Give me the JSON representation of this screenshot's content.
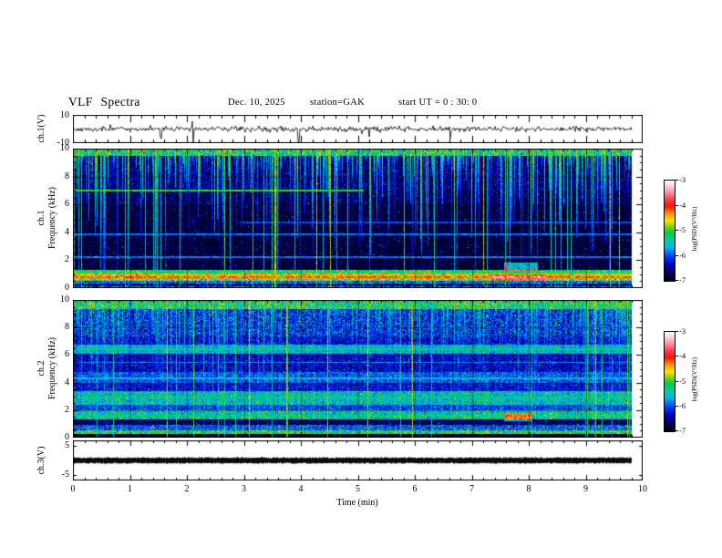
{
  "header": {
    "title": "VLF Spectra",
    "date": "Dec. 10, 2025",
    "station": "station=GAK",
    "start_ut": "start UT =  0 : 30: 0"
  },
  "x_axis": {
    "label": "Time  (min)",
    "ticks": [
      "0",
      "1",
      "2",
      "3",
      "4",
      "5",
      "6",
      "7",
      "8",
      "9",
      "10"
    ],
    "range_min": [
      0,
      10
    ],
    "data_end_min": 9.8
  },
  "panels": {
    "ch1_wave": {
      "label": "ch.1(V)",
      "y_ticks": [
        "10",
        "-10"
      ],
      "y_range_V": [
        -10,
        10
      ]
    },
    "ch1_spec": {
      "label_line1": "ch.1",
      "label_line2": "Frequency  (kHz)",
      "y_ticks": [
        "10",
        "8",
        "6",
        "4",
        "2",
        "0"
      ],
      "y_range_kHz": [
        0,
        10
      ]
    },
    "ch2_spec": {
      "label_line1": "ch.2",
      "label_line2": "Frequency  (kHz)",
      "y_ticks": [
        "10",
        "8",
        "6",
        "4",
        "2",
        "0"
      ],
      "y_range_kHz": [
        0,
        10
      ]
    },
    "ch3_wave": {
      "label": "ch.3(V)",
      "y_ticks": [
        "5",
        "-5"
      ],
      "y_range_V": [
        -7,
        7
      ]
    }
  },
  "colorbar": {
    "label": "log(PSD)(V²/Hz)",
    "ticks": [
      "-3",
      "-4",
      "-5",
      "-6",
      "-7"
    ],
    "z_range": [
      -7,
      -3
    ],
    "gradient_stops": [
      [
        0,
        "#ffffff"
      ],
      [
        5,
        "#ffd2de"
      ],
      [
        12,
        "#ff8fa6"
      ],
      [
        20,
        "#ff3344"
      ],
      [
        26,
        "#ff1500"
      ],
      [
        33,
        "#ff9500"
      ],
      [
        40,
        "#ffe400"
      ],
      [
        46,
        "#7fd600"
      ],
      [
        52,
        "#00cc44"
      ],
      [
        60,
        "#00ccaa"
      ],
      [
        67,
        "#00b4e6"
      ],
      [
        75,
        "#0044ff"
      ],
      [
        84,
        "#0000bb"
      ],
      [
        92,
        "#000060"
      ],
      [
        100,
        "#000000"
      ]
    ]
  },
  "chart_data": [
    {
      "type": "line",
      "name": "ch1-voltage-waveform",
      "x_range_min": [
        0,
        10
      ],
      "data_end_min": 9.8,
      "y_range_V": [
        -10,
        10
      ],
      "signal": {
        "mean_V": 0,
        "noise_sigma_V": 1.0,
        "neg_spike_rate": 0.012,
        "neg_spike_V": [
          -4,
          -11
        ],
        "pos_spike_rate": 0.005,
        "pos_spike_V": [
          2.5,
          5.5
        ],
        "seed": 42
      }
    },
    {
      "type": "heatmap",
      "name": "ch1-spectrogram",
      "x_range_min": [
        0,
        9.8
      ],
      "y_range_kHz": [
        0,
        10
      ],
      "z_range_logPSD": [
        -7,
        -3
      ],
      "bands": [
        {
          "f_lo": 9.5,
          "f_hi": 10.01,
          "base": 0.42,
          "var": 0.22
        },
        {
          "f_lo": 7.0,
          "f_hi": 9.5,
          "base": 0.1,
          "var": 0.16
        },
        {
          "f_lo": 6.0,
          "f_hi": 7.0,
          "base": 0.08,
          "var": 0.12
        },
        {
          "f_lo": 1.35,
          "f_hi": 6.0,
          "base": 0.05,
          "var": 0.09
        },
        {
          "f_lo": 1.05,
          "f_hi": 1.35,
          "base": 0.45,
          "var": 0.15
        },
        {
          "f_lo": 0.9,
          "f_hi": 1.05,
          "base": 0.6,
          "var": 0.12
        },
        {
          "f_lo": 0.78,
          "f_hi": 0.9,
          "base": 0.72,
          "var": 0.08
        },
        {
          "f_lo": 0.55,
          "f_hi": 0.78,
          "base": 0.55,
          "var": 0.15
        },
        {
          "f_lo": 0.38,
          "f_hi": 0.55,
          "base": 0.28,
          "var": 0.2
        },
        {
          "f_lo": 0.18,
          "f_hi": 0.38,
          "base": 0.1,
          "var": 0.25
        },
        {
          "f_lo": 0.0,
          "f_hi": 0.18,
          "base": 0.35,
          "var": 0.35
        }
      ],
      "streaks": {
        "prob": 0.6,
        "full_prob": 0.1,
        "int_lo": 0.3,
        "int_hi": 0.75,
        "thin_prob": 0.05
      },
      "hlines": [
        {
          "f": 7.05,
          "amp": 0.5,
          "x0": 0.0,
          "x1": 0.52
        },
        {
          "f": 3.9,
          "amp": 0.28,
          "x0": 0.0,
          "x1": 1.0
        },
        {
          "f": 2.25,
          "amp": 0.28,
          "x0": 0.0,
          "x1": 1.0
        },
        {
          "f": 4.75,
          "amp": 0.24,
          "x0": 0.3,
          "x1": 1.0
        }
      ],
      "blobs": [
        {
          "x0": 7.55,
          "x1": 8.15,
          "f0": 1.25,
          "f1": 1.85,
          "amp": 0.38
        },
        {
          "x0": 7.3,
          "x1": 8.3,
          "f0": 0.55,
          "f1": 1.0,
          "amp": 0.2
        }
      ],
      "seed": 12345
    },
    {
      "type": "heatmap",
      "name": "ch2-spectrogram",
      "x_range_min": [
        0,
        9.8
      ],
      "y_range_kHz": [
        0,
        10
      ],
      "z_range_logPSD": [
        -7,
        -3
      ],
      "bands": [
        {
          "f_lo": 9.4,
          "f_hi": 10.01,
          "base": 0.45,
          "var": 0.2
        },
        {
          "f_lo": 7.4,
          "f_hi": 9.4,
          "base": 0.22,
          "var": 0.22
        },
        {
          "f_lo": 6.8,
          "f_hi": 7.4,
          "base": 0.18,
          "var": 0.15
        },
        {
          "f_lo": 6.1,
          "f_hi": 6.8,
          "base": 0.35,
          "var": 0.12
        },
        {
          "f_lo": 4.8,
          "f_hi": 6.1,
          "base": 0.16,
          "var": 0.14
        },
        {
          "f_lo": 4.0,
          "f_hi": 4.8,
          "base": 0.26,
          "var": 0.15
        },
        {
          "f_lo": 3.4,
          "f_hi": 4.0,
          "base": 0.18,
          "var": 0.13
        },
        {
          "f_lo": 2.5,
          "f_hi": 3.4,
          "base": 0.38,
          "var": 0.16
        },
        {
          "f_lo": 2.0,
          "f_hi": 2.5,
          "base": 0.24,
          "var": 0.15
        },
        {
          "f_lo": 1.35,
          "f_hi": 2.0,
          "base": 0.4,
          "var": 0.18
        },
        {
          "f_lo": 0.95,
          "f_hi": 1.35,
          "base": 0.08,
          "var": 0.1
        },
        {
          "f_lo": 0.55,
          "f_hi": 0.95,
          "base": 0.26,
          "var": 0.2
        },
        {
          "f_lo": 0.3,
          "f_hi": 0.55,
          "base": 0.45,
          "var": 0.22
        },
        {
          "f_lo": 0.12,
          "f_hi": 0.3,
          "base": 0.03,
          "var": 0.04
        },
        {
          "f_lo": 0.0,
          "f_hi": 0.12,
          "base": 0.4,
          "var": 0.45
        }
      ],
      "streaks": {
        "prob": 0.5,
        "full_prob": 0.08,
        "int_lo": 0.25,
        "int_hi": 0.6,
        "thin_prob": 0.06
      },
      "hlines": [
        {
          "f": 6.45,
          "amp": 0.42,
          "x0": 0.0,
          "x1": 1.0
        },
        {
          "f": 5.5,
          "amp": 0.3,
          "x0": 0.0,
          "x1": 1.0
        },
        {
          "f": 4.35,
          "amp": 0.35,
          "x0": 0.0,
          "x1": 1.0
        },
        {
          "f": 2.95,
          "amp": 0.4,
          "x0": 0.0,
          "x1": 1.0
        },
        {
          "f": 2.45,
          "amp": 0.35,
          "x0": 0.0,
          "x1": 1.0
        },
        {
          "f": 1.6,
          "amp": 0.42,
          "x0": 0.0,
          "x1": 1.0
        }
      ],
      "blobs": [
        {
          "x0": 7.55,
          "x1": 8.05,
          "f0": 1.2,
          "f1": 1.8,
          "amp": 0.35
        }
      ],
      "seed": 67890
    },
    {
      "type": "line",
      "name": "ch3-voltage-waveform",
      "x_range_min": [
        0,
        10
      ],
      "data_end_min": 9.8,
      "y_range_V": [
        -7,
        7
      ],
      "signal": {
        "value_V": 0,
        "band_thickness_V": 1.6,
        "seed": 7
      }
    }
  ]
}
